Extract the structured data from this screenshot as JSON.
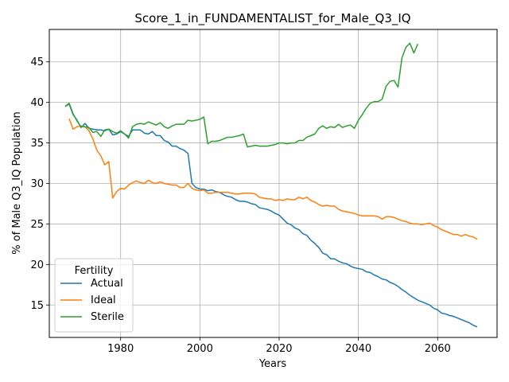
{
  "chart_data": {
    "type": "line",
    "title": "Score_1_in_FUNDAMENTALIST_for_Male_Q3_IQ",
    "xlabel": "Years",
    "ylabel": "% of Male Q3_IQ Population",
    "xlim": [
      1962,
      2075
    ],
    "ylim": [
      11,
      49
    ],
    "xticks": [
      1980,
      2000,
      2020,
      2040,
      2060
    ],
    "yticks": [
      15,
      20,
      25,
      30,
      35,
      40,
      45
    ],
    "grid": true,
    "legend": {
      "title": "Fertility",
      "placement": "lower left"
    },
    "series": [
      {
        "name": "Actual",
        "color": "#1f77b4",
        "points": [
          [
            1966,
            39.5
          ],
          [
            1967,
            39.8
          ],
          [
            1968,
            38.5
          ],
          [
            1969,
            37.8
          ],
          [
            1970,
            36.9
          ],
          [
            1971,
            37.4
          ],
          [
            1972,
            36.8
          ],
          [
            1973,
            36.7
          ],
          [
            1974,
            36.6
          ],
          [
            1975,
            36.6
          ],
          [
            1976,
            36.5
          ],
          [
            1977,
            36.7
          ],
          [
            1978,
            36.0
          ],
          [
            1979,
            36.1
          ],
          [
            1980,
            36.4
          ],
          [
            1981,
            36.1
          ],
          [
            1982,
            35.8
          ],
          [
            1983,
            36.6
          ],
          [
            1984,
            36.6
          ],
          [
            1985,
            36.6
          ],
          [
            1986,
            36.2
          ],
          [
            1987,
            36.1
          ],
          [
            1988,
            36.4
          ],
          [
            1989,
            35.9
          ],
          [
            1990,
            35.9
          ],
          [
            1991,
            35.3
          ],
          [
            1992,
            35.1
          ],
          [
            1993,
            34.6
          ],
          [
            1994,
            34.6
          ],
          [
            1995,
            34.3
          ],
          [
            1996,
            34.1
          ],
          [
            1997,
            33.7
          ],
          [
            1998,
            30.0
          ],
          [
            1999,
            29.5
          ],
          [
            2000,
            29.3
          ],
          [
            2001,
            29.3
          ],
          [
            2002,
            29.1
          ],
          [
            2003,
            29.2
          ],
          [
            2004,
            29.0
          ],
          [
            2005,
            28.9
          ],
          [
            2006,
            28.6
          ],
          [
            2007,
            28.4
          ],
          [
            2008,
            28.3
          ],
          [
            2009,
            28.0
          ],
          [
            2010,
            27.8
          ],
          [
            2011,
            27.8
          ],
          [
            2012,
            27.7
          ],
          [
            2013,
            27.5
          ],
          [
            2014,
            27.4
          ],
          [
            2015,
            27.0
          ],
          [
            2016,
            26.9
          ],
          [
            2017,
            26.8
          ],
          [
            2018,
            26.6
          ],
          [
            2019,
            26.3
          ],
          [
            2020,
            26.1
          ],
          [
            2021,
            25.6
          ],
          [
            2022,
            25.1
          ],
          [
            2023,
            24.9
          ],
          [
            2024,
            24.5
          ],
          [
            2025,
            24.3
          ],
          [
            2026,
            23.8
          ],
          [
            2027,
            23.6
          ],
          [
            2028,
            23.0
          ],
          [
            2029,
            22.6
          ],
          [
            2030,
            22.1
          ],
          [
            2031,
            21.4
          ],
          [
            2032,
            21.2
          ],
          [
            2033,
            20.7
          ],
          [
            2034,
            20.7
          ],
          [
            2035,
            20.4
          ],
          [
            2036,
            20.2
          ],
          [
            2037,
            20.1
          ],
          [
            2038,
            19.8
          ],
          [
            2039,
            19.6
          ],
          [
            2040,
            19.5
          ],
          [
            2041,
            19.4
          ],
          [
            2042,
            19.1
          ],
          [
            2043,
            19.0
          ],
          [
            2044,
            18.7
          ],
          [
            2045,
            18.5
          ],
          [
            2046,
            18.2
          ],
          [
            2047,
            18.1
          ],
          [
            2048,
            17.8
          ],
          [
            2049,
            17.6
          ],
          [
            2050,
            17.3
          ],
          [
            2051,
            16.9
          ],
          [
            2052,
            16.6
          ],
          [
            2053,
            16.2
          ],
          [
            2054,
            15.9
          ],
          [
            2055,
            15.6
          ],
          [
            2056,
            15.4
          ],
          [
            2057,
            15.2
          ],
          [
            2058,
            15.0
          ],
          [
            2059,
            14.6
          ],
          [
            2060,
            14.4
          ],
          [
            2061,
            14.0
          ],
          [
            2062,
            13.9
          ],
          [
            2063,
            13.7
          ],
          [
            2064,
            13.6
          ],
          [
            2065,
            13.4
          ],
          [
            2066,
            13.2
          ],
          [
            2067,
            13.0
          ],
          [
            2068,
            12.8
          ],
          [
            2069,
            12.5
          ],
          [
            2070,
            12.3
          ]
        ]
      },
      {
        "name": "Ideal",
        "color": "#ff7f0e",
        "points": [
          [
            1967,
            38.0
          ],
          [
            1968,
            36.7
          ],
          [
            1969,
            37.0
          ],
          [
            1970,
            37.1
          ],
          [
            1971,
            37.0
          ],
          [
            1972,
            36.5
          ],
          [
            1973,
            35.5
          ],
          [
            1974,
            34.1
          ],
          [
            1975,
            33.4
          ],
          [
            1976,
            32.3
          ],
          [
            1977,
            32.7
          ],
          [
            1978,
            28.2
          ],
          [
            1979,
            29.0
          ],
          [
            1980,
            29.4
          ],
          [
            1981,
            29.3
          ],
          [
            1982,
            29.8
          ],
          [
            1983,
            30.1
          ],
          [
            1984,
            30.3
          ],
          [
            1985,
            30.1
          ],
          [
            1986,
            30.0
          ],
          [
            1987,
            30.4
          ],
          [
            1988,
            30.1
          ],
          [
            1989,
            30.0
          ],
          [
            1990,
            30.2
          ],
          [
            1991,
            30.0
          ],
          [
            1992,
            29.9
          ],
          [
            1993,
            29.8
          ],
          [
            1994,
            29.8
          ],
          [
            1995,
            29.5
          ],
          [
            1996,
            29.5
          ],
          [
            1997,
            30.0
          ],
          [
            1998,
            29.4
          ],
          [
            1999,
            29.2
          ],
          [
            2000,
            29.1
          ],
          [
            2001,
            29.2
          ],
          [
            2002,
            28.8
          ],
          [
            2003,
            28.8
          ],
          [
            2004,
            28.9
          ],
          [
            2005,
            28.9
          ],
          [
            2006,
            28.9
          ],
          [
            2007,
            28.9
          ],
          [
            2008,
            28.8
          ],
          [
            2009,
            28.7
          ],
          [
            2010,
            28.7
          ],
          [
            2011,
            28.8
          ],
          [
            2012,
            28.8
          ],
          [
            2013,
            28.8
          ],
          [
            2014,
            28.7
          ],
          [
            2015,
            28.3
          ],
          [
            2016,
            28.2
          ],
          [
            2017,
            28.1
          ],
          [
            2018,
            28.1
          ],
          [
            2019,
            27.9
          ],
          [
            2020,
            28.0
          ],
          [
            2021,
            27.9
          ],
          [
            2022,
            28.1
          ],
          [
            2023,
            28.0
          ],
          [
            2024,
            28.0
          ],
          [
            2025,
            28.3
          ],
          [
            2026,
            28.1
          ],
          [
            2027,
            28.3
          ],
          [
            2028,
            27.9
          ],
          [
            2029,
            27.7
          ],
          [
            2030,
            27.4
          ],
          [
            2031,
            27.2
          ],
          [
            2032,
            27.3
          ],
          [
            2033,
            27.2
          ],
          [
            2034,
            27.2
          ],
          [
            2035,
            26.8
          ],
          [
            2036,
            26.6
          ],
          [
            2037,
            26.5
          ],
          [
            2038,
            26.4
          ],
          [
            2039,
            26.3
          ],
          [
            2040,
            26.1
          ],
          [
            2041,
            26.0
          ],
          [
            2042,
            26.0
          ],
          [
            2043,
            26.0
          ],
          [
            2044,
            26.0
          ],
          [
            2045,
            25.9
          ],
          [
            2046,
            25.6
          ],
          [
            2047,
            25.9
          ],
          [
            2048,
            25.9
          ],
          [
            2049,
            25.8
          ],
          [
            2050,
            25.6
          ],
          [
            2051,
            25.4
          ],
          [
            2052,
            25.3
          ],
          [
            2053,
            25.1
          ],
          [
            2054,
            25.0
          ],
          [
            2055,
            25.0
          ],
          [
            2056,
            24.9
          ],
          [
            2057,
            25.0
          ],
          [
            2058,
            25.1
          ],
          [
            2059,
            24.8
          ],
          [
            2060,
            24.6
          ],
          [
            2061,
            24.3
          ],
          [
            2062,
            24.1
          ],
          [
            2063,
            23.9
          ],
          [
            2064,
            23.7
          ],
          [
            2065,
            23.7
          ],
          [
            2066,
            23.5
          ],
          [
            2067,
            23.7
          ],
          [
            2068,
            23.5
          ],
          [
            2069,
            23.4
          ],
          [
            2070,
            23.1
          ]
        ]
      },
      {
        "name": "Sterile",
        "color": "#2ca02c",
        "points": [
          [
            1966,
            39.5
          ],
          [
            1967,
            39.9
          ],
          [
            1968,
            38.6
          ],
          [
            1969,
            37.7
          ],
          [
            1970,
            37.0
          ],
          [
            1971,
            37.0
          ],
          [
            1972,
            36.9
          ],
          [
            1973,
            36.3
          ],
          [
            1974,
            36.4
          ],
          [
            1975,
            35.8
          ],
          [
            1976,
            36.6
          ],
          [
            1977,
            36.7
          ],
          [
            1978,
            36.4
          ],
          [
            1979,
            36.2
          ],
          [
            1980,
            36.5
          ],
          [
            1981,
            36.1
          ],
          [
            1982,
            35.6
          ],
          [
            1983,
            37.0
          ],
          [
            1984,
            37.3
          ],
          [
            1985,
            37.4
          ],
          [
            1986,
            37.3
          ],
          [
            1987,
            37.6
          ],
          [
            1988,
            37.4
          ],
          [
            1989,
            37.2
          ],
          [
            1990,
            37.5
          ],
          [
            1991,
            37.0
          ],
          [
            1992,
            36.8
          ],
          [
            1993,
            37.1
          ],
          [
            1994,
            37.3
          ],
          [
            1995,
            37.3
          ],
          [
            1996,
            37.3
          ],
          [
            1997,
            37.8
          ],
          [
            1998,
            37.7
          ],
          [
            1999,
            37.8
          ],
          [
            2000,
            37.9
          ],
          [
            2001,
            38.2
          ],
          [
            2002,
            34.9
          ],
          [
            2003,
            35.2
          ],
          [
            2004,
            35.2
          ],
          [
            2005,
            35.3
          ],
          [
            2006,
            35.5
          ],
          [
            2007,
            35.7
          ],
          [
            2008,
            35.7
          ],
          [
            2009,
            35.8
          ],
          [
            2010,
            35.9
          ],
          [
            2011,
            36.1
          ],
          [
            2012,
            34.5
          ],
          [
            2013,
            34.6
          ],
          [
            2014,
            34.7
          ],
          [
            2015,
            34.6
          ],
          [
            2016,
            34.6
          ],
          [
            2017,
            34.6
          ],
          [
            2018,
            34.7
          ],
          [
            2019,
            34.8
          ],
          [
            2020,
            35.0
          ],
          [
            2021,
            35.0
          ],
          [
            2022,
            34.9
          ],
          [
            2023,
            35.0
          ],
          [
            2024,
            35.0
          ],
          [
            2025,
            35.3
          ],
          [
            2026,
            35.3
          ],
          [
            2027,
            35.7
          ],
          [
            2028,
            35.9
          ],
          [
            2029,
            36.1
          ],
          [
            2030,
            36.8
          ],
          [
            2031,
            37.1
          ],
          [
            2032,
            36.8
          ],
          [
            2033,
            37.0
          ],
          [
            2034,
            36.9
          ],
          [
            2035,
            37.3
          ],
          [
            2036,
            36.9
          ],
          [
            2037,
            37.1
          ],
          [
            2038,
            37.2
          ],
          [
            2039,
            36.8
          ],
          [
            2040,
            37.8
          ],
          [
            2041,
            38.5
          ],
          [
            2042,
            39.3
          ],
          [
            2043,
            39.9
          ],
          [
            2044,
            40.1
          ],
          [
            2045,
            40.1
          ],
          [
            2046,
            40.4
          ],
          [
            2047,
            42.0
          ],
          [
            2048,
            42.6
          ],
          [
            2049,
            42.7
          ],
          [
            2050,
            41.9
          ],
          [
            2051,
            45.5
          ],
          [
            2052,
            46.8
          ],
          [
            2053,
            47.3
          ],
          [
            2054,
            46.1
          ],
          [
            2055,
            47.2
          ]
        ]
      }
    ]
  }
}
